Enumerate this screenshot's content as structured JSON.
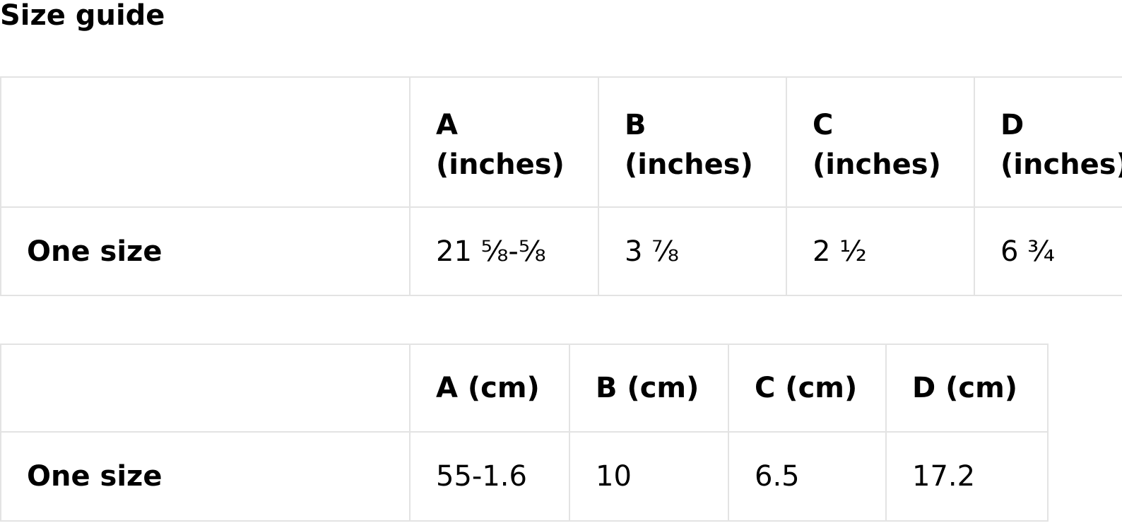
{
  "title": "Size guide",
  "inches_table": {
    "columns": [
      {
        "letter": "A",
        "unit": "(inches)"
      },
      {
        "letter": "B",
        "unit": "(inches)"
      },
      {
        "letter": "C",
        "unit": "(inches)"
      },
      {
        "letter": "D",
        "unit": "(inches)"
      }
    ],
    "rows": [
      {
        "label": "One size",
        "values": [
          "21 ⅝-⅝",
          "3 ⅞",
          "2 ½",
          "6 ¾"
        ]
      }
    ]
  },
  "cm_table": {
    "columns": [
      "A (cm)",
      "B (cm)",
      "C (cm)",
      "D (cm)"
    ],
    "rows": [
      {
        "label": "One size",
        "values": [
          "55-1.6",
          "10",
          "6.5",
          "17.2"
        ]
      }
    ]
  },
  "colors": {
    "border": "#e3e3e3",
    "text": "#000000",
    "background": "#ffffff"
  }
}
